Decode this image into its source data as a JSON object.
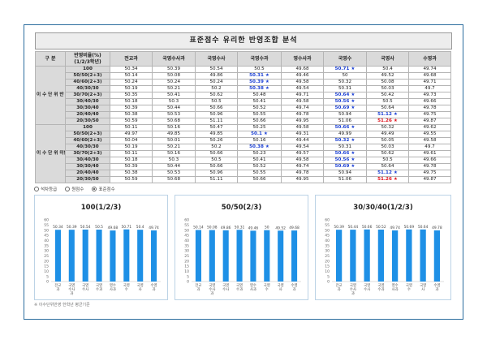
{
  "page": {
    "title": "표준점수 유리한 반영조합 분석",
    "footnote": "※ 이수단위반영 한학년 평균기준"
  },
  "table": {
    "header": {
      "group": "구 분",
      "ratio": "반영비율(%) (1/2/3학년)",
      "subjects": [
        "전교과",
        "국영수사과",
        "국영수사",
        "국영수과",
        "영수사과",
        "국영수",
        "국영사",
        "수영과"
      ]
    },
    "sections": [
      {
        "label": "이 수 단 위 반 영",
        "rows": [
          {
            "ratio": "100",
            "values": [
              "50.34",
              "50.39",
              "50.54",
              "50.5",
              "49.68",
              "50.71",
              "50.4",
              "49.74"
            ],
            "marks": [
              "",
              "",
              "",
              "",
              "",
              "blue",
              "",
              ""
            ]
          },
          {
            "ratio": "50/50(2+3)",
            "values": [
              "50.14",
              "50.08",
              "49.86",
              "50.31",
              "49.46",
              "50",
              "49.52",
              "49.68"
            ],
            "marks": [
              "",
              "",
              "",
              "blue",
              "",
              "",
              "",
              ""
            ]
          },
          {
            "ratio": "40/60(2+3)",
            "values": [
              "50.24",
              "50.24",
              "50.24",
              "50.39",
              "49.58",
              "50.32",
              "50.08",
              "49.71"
            ],
            "marks": [
              "",
              "",
              "",
              "blue",
              "",
              "",
              "",
              ""
            ]
          },
          {
            "ratio": "40/30/30",
            "values": [
              "50.19",
              "50.21",
              "50.2",
              "50.38",
              "49.54",
              "50.31",
              "50.03",
              "49.7"
            ],
            "marks": [
              "",
              "",
              "",
              "blue",
              "",
              "",
              "",
              ""
            ]
          },
          {
            "ratio": "30/70(2+3)",
            "values": [
              "50.35",
              "50.41",
              "50.62",
              "50.48",
              "49.71",
              "50.64",
              "50.42",
              "49.73"
            ],
            "marks": [
              "",
              "",
              "",
              "",
              "",
              "blue",
              "",
              ""
            ]
          },
          {
            "ratio": "30/40/30",
            "values": [
              "50.18",
              "50.3",
              "50.5",
              "50.41",
              "49.58",
              "50.56",
              "50.5",
              "49.66"
            ],
            "marks": [
              "",
              "",
              "",
              "",
              "",
              "blue",
              "",
              ""
            ]
          },
          {
            "ratio": "30/30/40",
            "values": [
              "50.39",
              "50.44",
              "50.66",
              "50.52",
              "49.74",
              "50.69",
              "50.64",
              "49.78"
            ],
            "marks": [
              "",
              "",
              "",
              "",
              "",
              "blue",
              "",
              ""
            ]
          },
          {
            "ratio": "20/40/40",
            "values": [
              "50.38",
              "50.53",
              "50.96",
              "50.55",
              "49.78",
              "50.94",
              "51.12",
              "49.75"
            ],
            "marks": [
              "",
              "",
              "",
              "",
              "",
              "",
              "blue",
              ""
            ]
          },
          {
            "ratio": "20/30/50",
            "values": [
              "50.59",
              "50.68",
              "51.11",
              "50.66",
              "49.95",
              "51.06",
              "51.26",
              "49.87"
            ],
            "marks": [
              "",
              "",
              "",
              "",
              "",
              "",
              "red",
              ""
            ]
          }
        ]
      },
      {
        "label": "이 수 단 위 미반영",
        "rows": [
          {
            "ratio": "100",
            "values": [
              "50.11",
              "50.16",
              "50.47",
              "50.25",
              "49.58",
              "50.66",
              "50.32",
              "49.62"
            ],
            "marks": [
              "",
              "",
              "",
              "",
              "",
              "blue",
              "",
              ""
            ]
          },
          {
            "ratio": "50/50(2+3)",
            "values": [
              "49.97",
              "49.85",
              "49.85",
              "50.1",
              "49.31",
              "49.99",
              "49.49",
              "49.55"
            ],
            "marks": [
              "",
              "",
              "",
              "blue",
              "",
              "",
              "",
              ""
            ]
          },
          {
            "ratio": "40/60(2+3)",
            "values": [
              "50.04",
              "50.01",
              "50.26",
              "50.16",
              "49.44",
              "50.32",
              "50.05",
              "49.58"
            ],
            "marks": [
              "",
              "",
              "",
              "",
              "",
              "blue",
              "",
              ""
            ]
          },
          {
            "ratio": "40/30/30",
            "values": [
              "50.19",
              "50.21",
              "50.2",
              "50.38",
              "49.54",
              "50.31",
              "50.03",
              "49.7"
            ],
            "marks": [
              "",
              "",
              "",
              "blue",
              "",
              "",
              "",
              ""
            ]
          },
          {
            "ratio": "30/70(2+3)",
            "values": [
              "50.11",
              "50.16",
              "50.66",
              "50.23",
              "49.57",
              "50.66",
              "50.62",
              "49.61"
            ],
            "marks": [
              "",
              "",
              "",
              "",
              "",
              "blue",
              "",
              ""
            ]
          },
          {
            "ratio": "30/40/30",
            "values": [
              "50.18",
              "50.3",
              "50.5",
              "50.41",
              "49.58",
              "50.56",
              "50.5",
              "49.66"
            ],
            "marks": [
              "",
              "",
              "",
              "",
              "",
              "blue",
              "",
              ""
            ]
          },
          {
            "ratio": "30/30/40",
            "values": [
              "50.39",
              "50.44",
              "50.66",
              "50.52",
              "49.74",
              "50.69",
              "50.64",
              "49.78"
            ],
            "marks": [
              "",
              "",
              "",
              "",
              "",
              "blue",
              "",
              ""
            ]
          },
          {
            "ratio": "20/40/40",
            "values": [
              "50.38",
              "50.53",
              "50.96",
              "50.55",
              "49.78",
              "50.94",
              "51.12",
              "49.75"
            ],
            "marks": [
              "",
              "",
              "",
              "",
              "",
              "",
              "blue",
              ""
            ]
          },
          {
            "ratio": "20/30/50",
            "values": [
              "50.59",
              "50.68",
              "51.11",
              "50.66",
              "49.95",
              "51.06",
              "51.26",
              "49.87"
            ],
            "marks": [
              "",
              "",
              "",
              "",
              "",
              "",
              "red",
              ""
            ]
          }
        ]
      }
    ],
    "star_glyph": "★"
  },
  "options": {
    "items": [
      "석차등급",
      "원점수",
      "표준점수"
    ],
    "selected": "표준점수"
  },
  "chart_data": [
    {
      "type": "bar",
      "title": "100(1/2/3)",
      "categories": [
        "전교과",
        "국영수사과",
        "국영수사",
        "국영수과",
        "영수사과",
        "국영수",
        "국영사",
        "수영과"
      ],
      "values": [
        50.34,
        50.39,
        50.54,
        50.5,
        49.68,
        50.71,
        50.4,
        49.74
      ],
      "value_labels": [
        "50.34",
        "50.39",
        "50.54",
        "50.5",
        "49.68",
        "50.71",
        "50.4",
        "49.74"
      ],
      "ylim": [
        0,
        60
      ],
      "yticks": [
        "0",
        "5",
        "10",
        "15",
        "20",
        "25",
        "30",
        "35",
        "40",
        "45",
        "50",
        "55",
        "60"
      ],
      "color": "#1e90e6",
      "grid": false
    },
    {
      "type": "bar",
      "title": "50/50(2/3)",
      "categories": [
        "전교과",
        "국영수사과",
        "국영수사",
        "국영수과",
        "영수사과",
        "국영수",
        "국영사",
        "수영과"
      ],
      "values": [
        50.14,
        50.08,
        49.86,
        50.31,
        49.46,
        50,
        49.52,
        49.68
      ],
      "value_labels": [
        "50.14",
        "50.08",
        "49.86",
        "50.31",
        "49.46",
        "50",
        "49.52",
        "49.68"
      ],
      "ylim": [
        0,
        60
      ],
      "yticks": [
        "0",
        "5",
        "10",
        "15",
        "20",
        "25",
        "30",
        "35",
        "40",
        "45",
        "50",
        "55",
        "60"
      ],
      "color": "#1e90e6",
      "grid": false
    },
    {
      "type": "bar",
      "title": "30/30/40(1/2/3)",
      "categories": [
        "전교과",
        "국영수사과",
        "국영수사",
        "국영수과",
        "영수사과",
        "국영수",
        "국영사",
        "수영과"
      ],
      "values": [
        50.39,
        50.44,
        50.66,
        50.52,
        49.74,
        50.69,
        50.64,
        49.78
      ],
      "value_labels": [
        "50.39",
        "50.44",
        "50.66",
        "50.52",
        "49.74",
        "50.69",
        "50.64",
        "49.78"
      ],
      "ylim": [
        0,
        60
      ],
      "yticks": [
        "0",
        "5",
        "10",
        "15",
        "20",
        "25",
        "30",
        "35",
        "40",
        "45",
        "50",
        "55",
        "60"
      ],
      "color": "#1e90e6",
      "grid": false
    }
  ]
}
